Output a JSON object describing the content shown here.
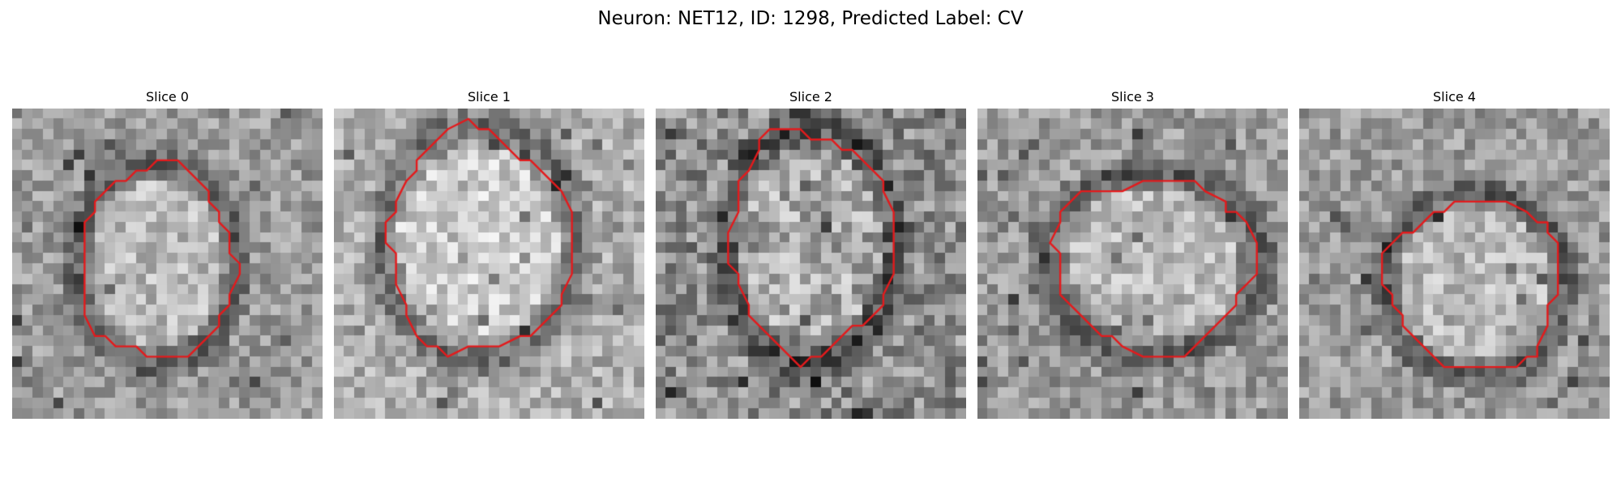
{
  "figure": {
    "title": "Neuron: NET12, ID: 1298, Predicted Label: CV",
    "contour_color": "#e41a1c",
    "colormap": "gray"
  },
  "panels": [
    {
      "title": "Slice 0",
      "cell_center": [
        14,
        15
      ],
      "cell_radius": [
        7.5,
        9.5
      ],
      "brightness": "medium"
    },
    {
      "title": "Slice 1",
      "cell_center": [
        14,
        13
      ],
      "cell_radius": [
        9,
        11
      ],
      "brightness": "light"
    },
    {
      "title": "Slice 2",
      "cell_center": [
        15,
        13
      ],
      "cell_radius": [
        8,
        11
      ],
      "brightness": "noisy"
    },
    {
      "title": "Slice 3",
      "cell_center": [
        17,
        15
      ],
      "cell_radius": [
        10,
        8.5
      ],
      "brightness": "medium"
    },
    {
      "title": "Slice 4",
      "cell_center": [
        17,
        17
      ],
      "cell_radius": [
        8.5,
        8.5
      ],
      "brightness": "medium"
    }
  ]
}
